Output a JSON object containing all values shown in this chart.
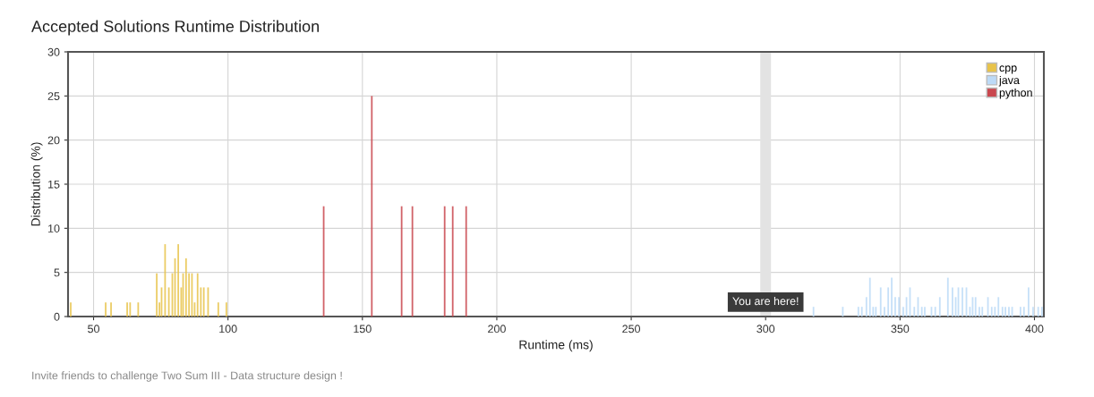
{
  "chart_data": {
    "type": "bar",
    "title": "Accepted Solutions Runtime Distribution",
    "xlabel": "Runtime (ms)",
    "ylabel": "Distribution (%)",
    "xlim": [
      40.5,
      403.5
    ],
    "xticks": [
      50,
      100,
      150,
      200,
      250,
      300,
      350,
      400
    ],
    "ylim": [
      0,
      30
    ],
    "yticks": [
      0,
      5,
      10,
      15,
      20,
      25,
      30
    ],
    "grid": true,
    "legend": "top right",
    "series": [
      {
        "name": "cpp",
        "color": "#e8c34a",
        "x": [
          41.5,
          54.5,
          56.5,
          62.5,
          63.6,
          66.6,
          73.5,
          74.5,
          75.3,
          76.6,
          78.0,
          79.3,
          80.3,
          81.5,
          82.6,
          83.3,
          84.4,
          85.5,
          86.6,
          87.6,
          88.7,
          89.9,
          91.0,
          92.6,
          96.4,
          99.4
        ],
        "values": [
          1.6,
          1.6,
          1.6,
          1.6,
          1.6,
          1.6,
          4.9,
          1.6,
          3.3,
          8.2,
          3.3,
          4.9,
          6.6,
          8.2,
          3.3,
          4.9,
          6.6,
          4.9,
          4.9,
          1.6,
          4.9,
          3.3,
          3.3,
          3.3,
          1.6,
          1.6
        ]
      },
      {
        "name": "java",
        "color": "#bcdaf7",
        "x": [
          317.8,
          328.7,
          334.5,
          335.8,
          337.5,
          338.8,
          340.0,
          341.0,
          342.8,
          344.2,
          345.6,
          346.9,
          348.2,
          349.6,
          351.2,
          352.4,
          353.7,
          355.3,
          356.7,
          358.1,
          359.2,
          361.7,
          363.1,
          364.8,
          367.8,
          369.5,
          370.7,
          371.7,
          373.2,
          374.7,
          376.0,
          377.0,
          378.1,
          379.5,
          380.6,
          382.7,
          384.1,
          385.3,
          386.6,
          388.1,
          389.2,
          390.5,
          391.7,
          394.8,
          396.1,
          397.8,
          399.5,
          401.4,
          402.8
        ],
        "values": [
          1.1,
          1.1,
          1.1,
          1.1,
          2.2,
          4.4,
          1.1,
          1.1,
          3.3,
          1.1,
          3.3,
          4.4,
          2.2,
          2.2,
          1.1,
          2.2,
          3.3,
          1.1,
          2.2,
          1.1,
          1.1,
          1.1,
          1.1,
          2.2,
          4.4,
          3.3,
          2.2,
          3.3,
          3.3,
          3.3,
          1.1,
          2.2,
          2.2,
          1.1,
          1.1,
          2.2,
          1.1,
          1.1,
          2.2,
          1.1,
          1.1,
          1.1,
          1.1,
          1.1,
          1.1,
          3.3,
          1.1,
          1.1,
          1.1
        ]
      },
      {
        "name": "python",
        "color": "#c9474e",
        "x": [
          135.6,
          153.5,
          164.6,
          168.6,
          180.6,
          183.6,
          188.6
        ],
        "values": [
          12.5,
          25,
          12.5,
          12.5,
          12.5,
          12.5,
          12.5
        ]
      }
    ],
    "bands": [
      {
        "axis": "x",
        "from": 298,
        "to": 302,
        "label": "You are here!",
        "color": "#e3e3e3"
      }
    ],
    "annotations": [
      "Invite friends to challenge Two Sum III - Data structure design !"
    ]
  }
}
